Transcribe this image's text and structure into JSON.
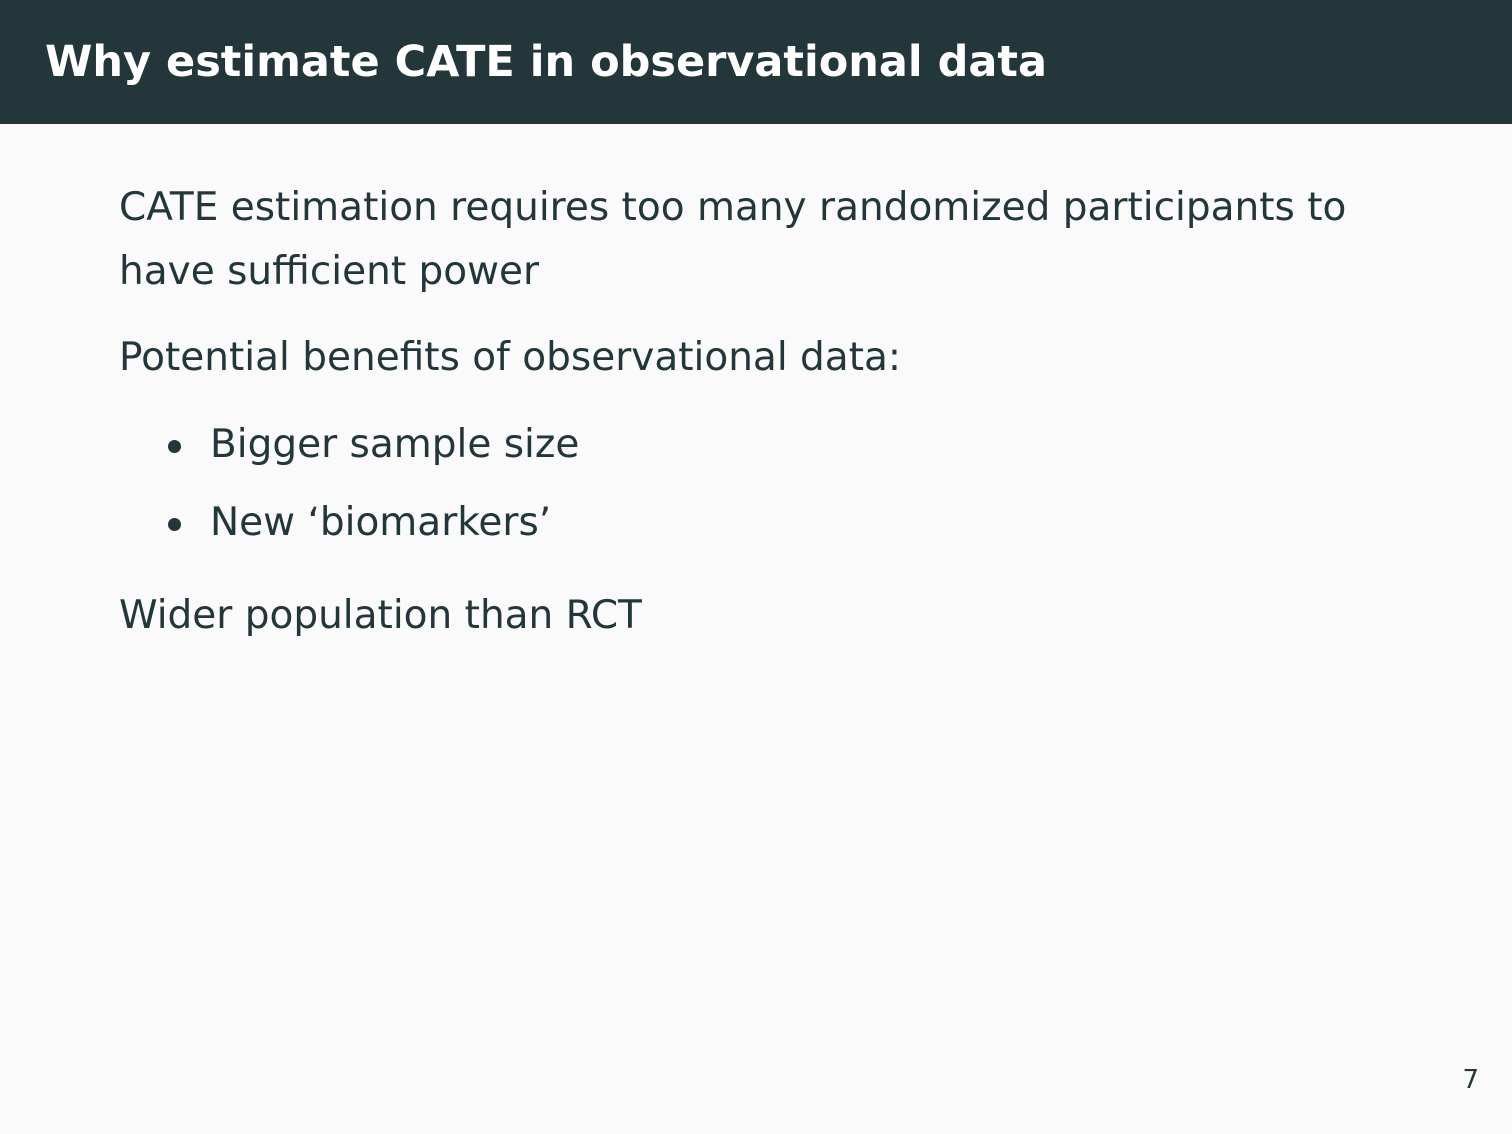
{
  "slide": {
    "title": "Why estimate CATE in observational data",
    "paragraph_1": "CATE estimation requires too many randomized participants to have sufficient power",
    "paragraph_2": "Potential benefits of observational data:",
    "bullets": [
      "Bigger sample size",
      "New ‘biomarkers’"
    ],
    "paragraph_3": "Wider population than RCT",
    "page_number": "7"
  },
  "colors": {
    "header_background": "#23373b",
    "header_text": "#ffffff",
    "body_background": "#fafafa",
    "body_text": "#23373b"
  }
}
